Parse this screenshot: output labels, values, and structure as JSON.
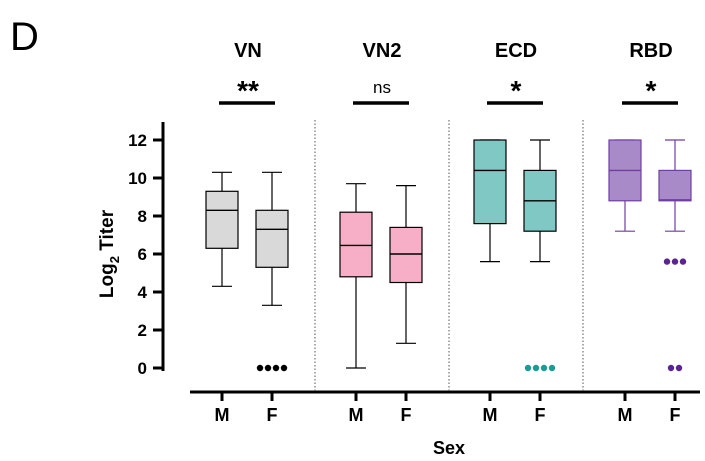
{
  "panel_label": "D",
  "chart_data": {
    "type": "box",
    "ylabel_main": "Log",
    "ylabel_sub": "2",
    "ylabel_tail": " Titer",
    "xlabel": "Sex",
    "ylim": [
      0,
      12
    ],
    "yticks": [
      0,
      2,
      4,
      6,
      8,
      10,
      12
    ],
    "groups": [
      {
        "name": "VN",
        "significance": "**",
        "color": "#d9d9d9",
        "stroke": "#000000",
        "outlier_color": "#000000",
        "boxes": [
          {
            "label": "M",
            "min": 4.3,
            "q1": 6.3,
            "median": 8.3,
            "q3": 9.3,
            "max": 10.3,
            "outliers": []
          },
          {
            "label": "F",
            "min": 3.3,
            "q1": 5.3,
            "median": 7.3,
            "q3": 8.3,
            "max": 10.3,
            "outliers": [
              0,
              0,
              0,
              0
            ]
          }
        ]
      },
      {
        "name": "VN2",
        "significance": "ns",
        "color": "#f7afc8",
        "stroke": "#000000",
        "outlier_color": "#000000",
        "boxes": [
          {
            "label": "M",
            "min": 0,
            "q1": 4.8,
            "median": 6.45,
            "q3": 8.2,
            "max": 9.7,
            "outliers": []
          },
          {
            "label": "F",
            "min": 1.3,
            "q1": 4.5,
            "median": 6.0,
            "q3": 7.4,
            "max": 9.6,
            "outliers": []
          }
        ]
      },
      {
        "name": "ECD",
        "significance": "*",
        "color": "#7fc8c3",
        "stroke": "#000000",
        "outlier_color": "#1a9c95",
        "boxes": [
          {
            "label": "M",
            "min": 5.6,
            "q1": 7.6,
            "median": 10.4,
            "q3": 12.0,
            "max": 12.0,
            "outliers": []
          },
          {
            "label": "F",
            "min": 5.6,
            "q1": 7.2,
            "median": 8.8,
            "q3": 10.4,
            "max": 12.0,
            "outliers": [
              0,
              0,
              0,
              0
            ]
          }
        ]
      },
      {
        "name": "RBD",
        "significance": "*",
        "color": "#a98ac9",
        "stroke": "#6f3fa0",
        "outlier_color": "#5b2591",
        "boxes": [
          {
            "label": "M",
            "min": 7.2,
            "q1": 8.8,
            "median": 10.4,
            "q3": 12.0,
            "max": 12.0,
            "outliers": []
          },
          {
            "label": "F",
            "min": 7.2,
            "q1": 8.8,
            "median": 8.85,
            "q3": 10.4,
            "max": 12.0,
            "outliers": [
              5.6,
              5.6,
              5.6,
              0,
              0
            ]
          }
        ]
      }
    ]
  }
}
